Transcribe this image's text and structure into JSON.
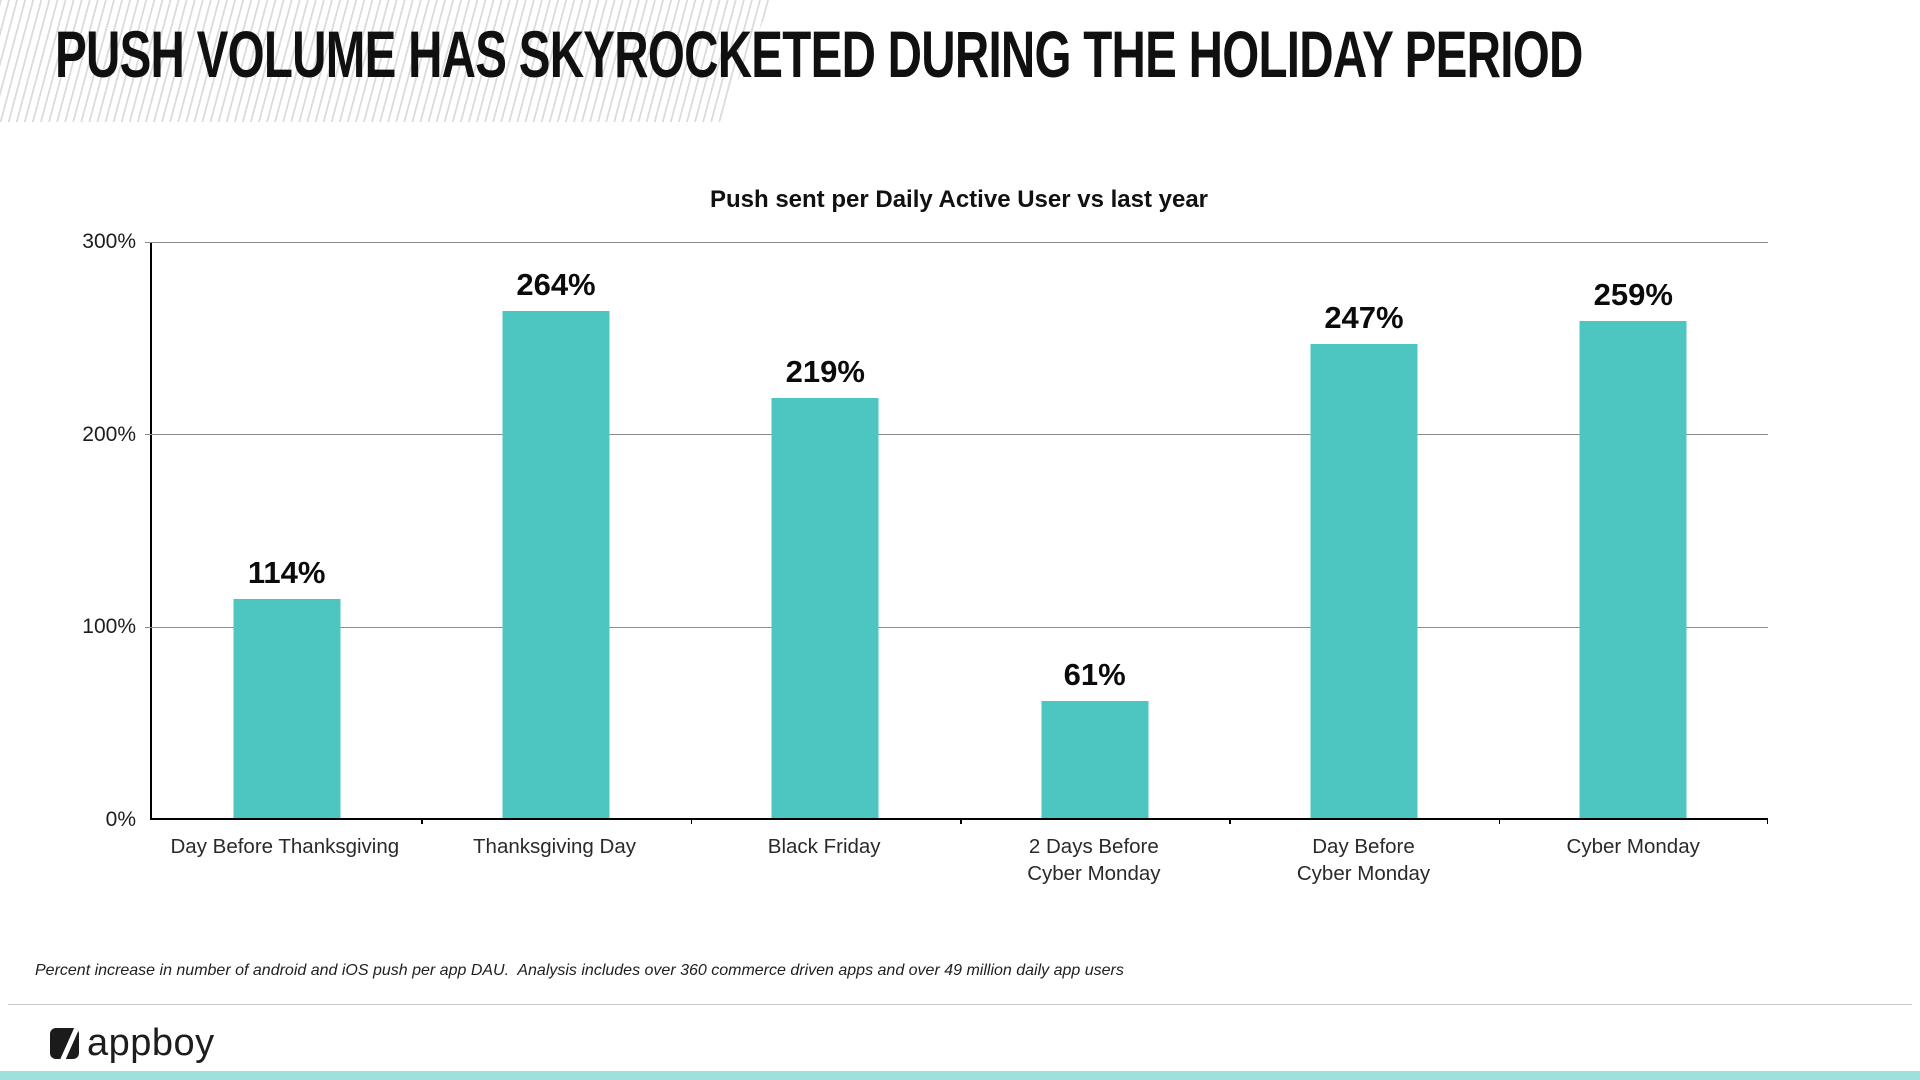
{
  "slide": {
    "title": "PUSH VOLUME HAS SKYROCKETED DURING THE HOLIDAY PERIOD",
    "footnote": "Percent increase in number of android and iOS push per app DAU.  Analysis includes over 360 commerce driven apps and over 49 million daily app users",
    "logo_text": "appboy"
  },
  "colors": {
    "bar": "#4DC6C2",
    "bottom_strip": "#9EE1DC",
    "gridline": "#8C8C8C",
    "axis": "#000000",
    "stripe": "#DBDBDB"
  },
  "chart_data": {
    "type": "bar",
    "title": "Push sent per Daily Active User vs last year",
    "categories": [
      "Day Before Thanksgiving",
      "Thanksgiving Day",
      "Black Friday",
      "2 Days Before\nCyber Monday",
      "Day Before\nCyber Monday",
      "Cyber Monday"
    ],
    "values": [
      114,
      264,
      219,
      61,
      247,
      259
    ],
    "data_labels": [
      "114%",
      "264%",
      "219%",
      "61%",
      "247%",
      "259%"
    ],
    "ylabel": "",
    "xlabel": "",
    "ylim": [
      0,
      300
    ],
    "yticks": [
      {
        "value": 300,
        "label": "300%"
      },
      {
        "value": 200,
        "label": "200%"
      },
      {
        "value": 100,
        "label": "100%"
      },
      {
        "value": 0,
        "label": "0%"
      }
    ],
    "gridlines_at": [
      300,
      200,
      100
    ],
    "grid": true,
    "legend": false,
    "bar_color": "#4DC6C2"
  }
}
